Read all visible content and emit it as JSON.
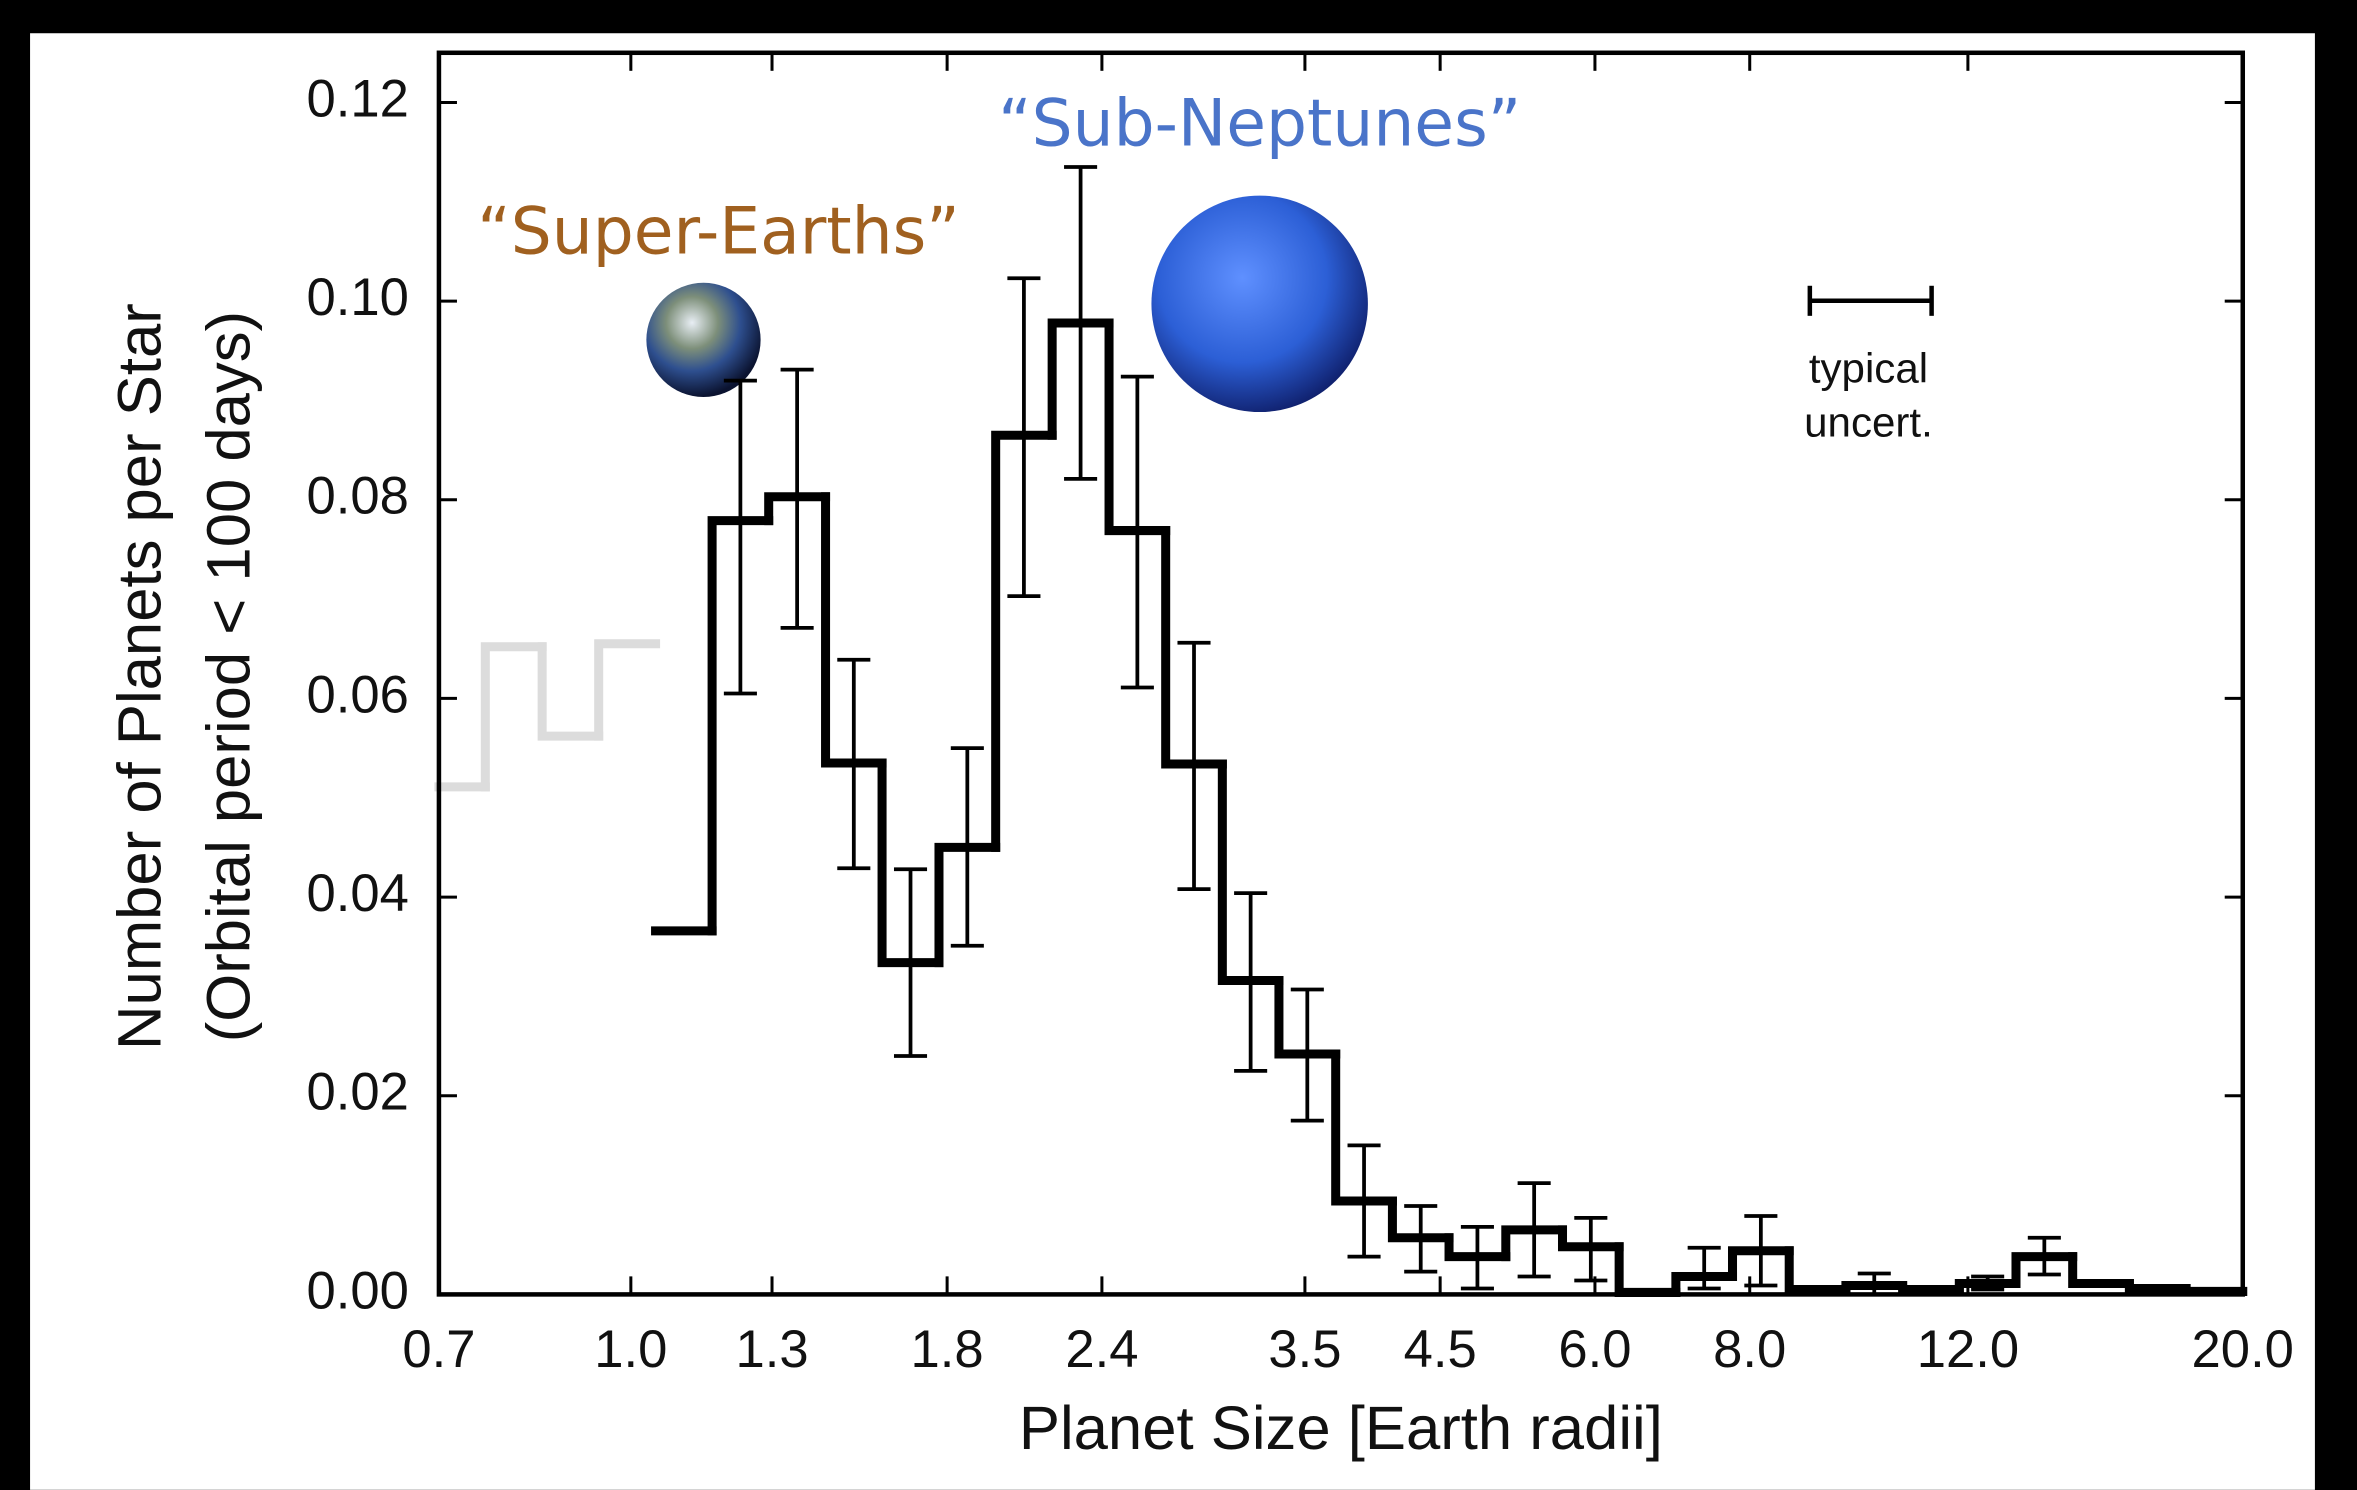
{
  "chart_data": {
    "type": "histogram",
    "xlabel": "Planet Size [Earth radii]",
    "ylabel_lines": [
      "Number of Planets per Star",
      "(Orbital period < 100 days)"
    ],
    "xscale": "log",
    "xlim": [
      0.7,
      20
    ],
    "xticks": [
      0.7,
      {
        "value": 1,
        "label": "1.0"
      },
      1.3,
      1.8,
      2.4,
      3.5,
      4.5,
      {
        "value": 6,
        "label": "6.0"
      },
      {
        "value": 8,
        "label": "8.0"
      },
      {
        "value": 12,
        "label": "12.0"
      },
      {
        "value": 20,
        "label": "20.0"
      }
    ],
    "ylim": [
      0,
      0.125
    ],
    "yticks": [
      {
        "value": 0,
        "label": "0.00"
      },
      0.02,
      0.04,
      0.06,
      0.08,
      {
        "value": 0.1,
        "label": "0.10"
      },
      0.12
    ],
    "grid": false,
    "annotations": [
      {
        "text": "“Super-Earths”",
        "color": "#a0601f"
      },
      {
        "text": "“Sub-Neptunes”",
        "color": "#4a74c9"
      }
    ],
    "typical_uncertainty_lines": [
      "typical",
      "uncert."
    ],
    "series": [
      {
        "color": "#dcdcdc",
        "bins": [
          0.7,
          0.763,
          0.848,
          0.942,
          1.047
        ],
        "values": [
          0.0511,
          0.0652,
          0.0562,
          0.0655
        ]
      },
      {
        "color": "#000000",
        "bins": [
          1.047,
          1.163,
          1.292,
          1.436,
          1.595,
          1.773,
          1.97,
          2.188,
          2.432,
          2.702,
          3.002,
          3.335,
          3.706,
          4.118,
          4.575,
          5.084,
          5.649,
          6.276,
          6.974,
          7.748,
          8.609,
          9.566,
          10.629,
          11.81,
          13.122,
          14.58,
          16.2,
          18,
          20
        ],
        "values": [
          0.0366,
          0.0779,
          0.0803,
          0.0535,
          0.0334,
          0.045,
          0.0865,
          0.0978,
          0.0769,
          0.0534,
          0.0316,
          0.0242,
          0.0094,
          0.0057,
          0.0038,
          0.0065,
          0.0048,
          0.0002,
          0.0018,
          0.0044,
          0.0005,
          0.0009,
          0.0005,
          0.0011,
          0.0038,
          0.0011,
          0.0006,
          0.0003
        ],
        "error_low": [
          null,
          0.0605,
          0.0671,
          0.0429,
          0.024,
          0.0351,
          0.0703,
          0.0821,
          0.0611,
          0.0408,
          0.0225,
          0.0175,
          0.0038,
          0.0023,
          0.0006,
          0.0018,
          0.0014,
          null,
          0.0006,
          0.0009,
          null,
          0.0,
          null,
          0.0005,
          0.002,
          null,
          null,
          null
        ],
        "error_high": [
          null,
          0.092,
          0.0931,
          0.0639,
          0.0428,
          0.055,
          0.1023,
          0.1135,
          0.0924,
          0.0656,
          0.0404,
          0.0307,
          0.015,
          0.0089,
          0.0068,
          0.0112,
          0.0077,
          null,
          0.0047,
          0.0079,
          null,
          0.0021,
          null,
          0.0018,
          0.0057,
          null,
          null,
          null
        ]
      }
    ]
  }
}
